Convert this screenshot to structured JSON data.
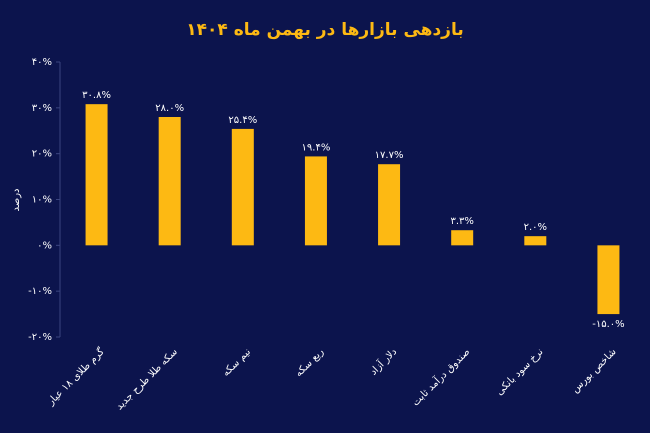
{
  "chart_data": {
    "type": "bar",
    "title": "بازدهی بازارها در بهمن ماه ۱۴۰۴",
    "y_label": "درصد",
    "categories": [
      "گرم طلای ۱۸ عیار",
      "سکه طلا طرح جدید",
      "نیم سکه",
      "ربع سکه",
      "دلار آزاد",
      "صندوق درآمد ثابت",
      "نرخ سود بانکی",
      "شاخص بورس"
    ],
    "values": [
      30.8,
      28.0,
      25.4,
      19.4,
      17.7,
      3.3,
      2.0,
      -15.0
    ],
    "value_labels": [
      "۳۰.۸%",
      "۲۸.۰%",
      "۲۵.۴%",
      "۱۹.۴%",
      "۱۷.۷%",
      "۳.۳%",
      "۲.۰%",
      "-۱۵.۰%"
    ],
    "color": "#fdb913",
    "ylim": [
      -20,
      40
    ],
    "yticks": [
      {
        "value": -20,
        "label": "-۲۰%"
      },
      {
        "value": -10,
        "label": "-۱۰%"
      },
      {
        "value": 0,
        "label": "۰%"
      },
      {
        "value": 10,
        "label": "۱۰%"
      },
      {
        "value": 20,
        "label": "۲۰%"
      },
      {
        "value": 30,
        "label": "۳۰%"
      },
      {
        "value": 40,
        "label": "۴۰%"
      }
    ],
    "grid": false
  }
}
